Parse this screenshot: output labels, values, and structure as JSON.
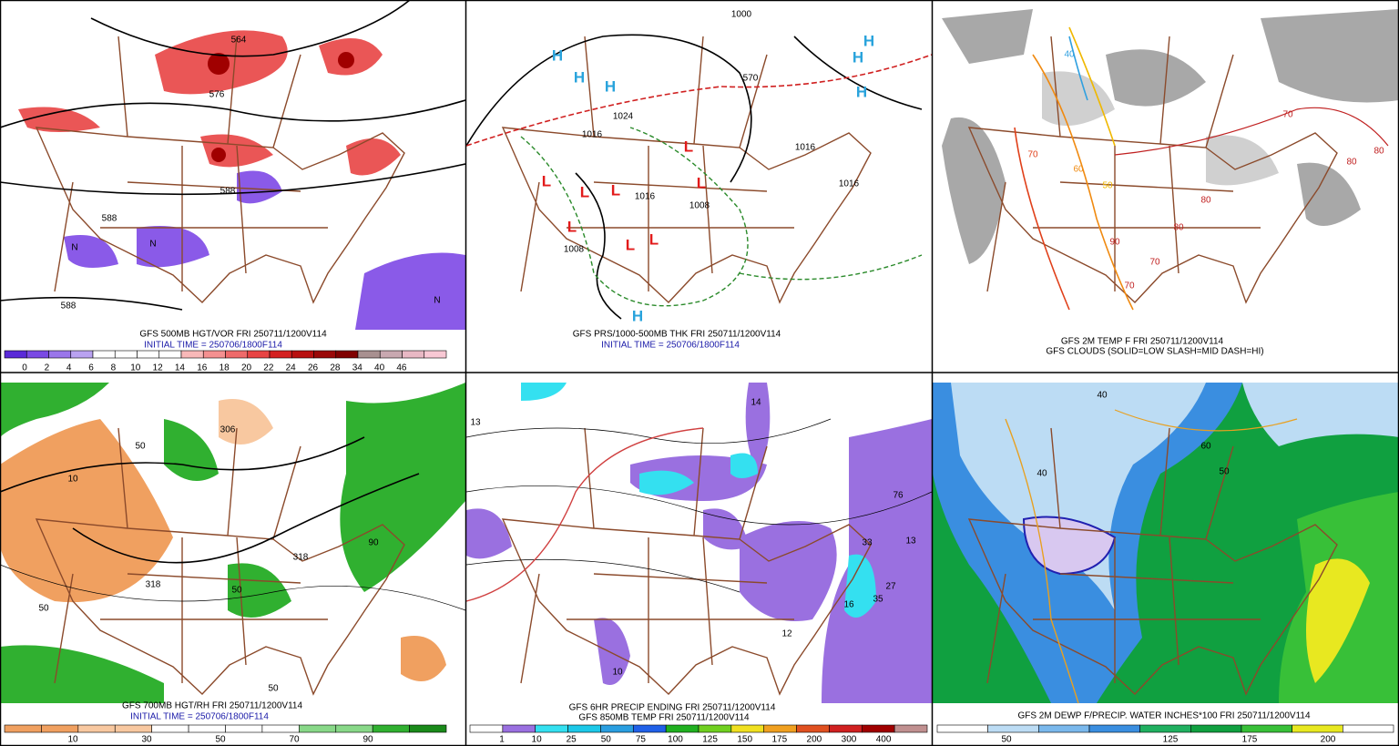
{
  "panels": [
    {
      "caption": [
        "GFS 500MB HGT/VOR FRI 250711/1200V114",
        "INITIAL TIME = 250706/1800F114"
      ],
      "map_labels": [
        "564",
        "576",
        "588",
        "588",
        "588",
        "N",
        "N",
        "N"
      ],
      "colorbar": {
        "labels": [
          0,
          2,
          4,
          6,
          8,
          10,
          12,
          14,
          16,
          18,
          20,
          22,
          24,
          26,
          28,
          34,
          40,
          46
        ],
        "colors": [
          "#5a2ad8",
          "#7a4ae4",
          "#9a76ea",
          "#b9a2f0",
          "#ffffff",
          "#ffffff",
          "#ffffff",
          "#ffffff",
          "#f8b8b8",
          "#f49090",
          "#ee6a6a",
          "#e84444",
          "#d42020",
          "#b81010",
          "#9a0808",
          "#800000",
          "#a89090",
          "#c8a8b0",
          "#e8b8c4",
          "#f8c8d4"
        ]
      }
    },
    {
      "caption": [
        "GFS PRS/1000-500MB THK FRI 250711/1200V114",
        "INITIAL TIME = 250706/1800F114"
      ],
      "map_labels": [
        "H",
        "H",
        "H",
        "H",
        "H",
        "H",
        "H",
        "L",
        "L",
        "L",
        "L",
        "L",
        "L",
        "L",
        "L",
        "1024",
        "1016",
        "1016",
        "1008",
        "1008",
        "1016",
        "1016",
        "570",
        "1000"
      ]
    },
    {
      "caption": [
        "GFS 2M TEMP F FRI 250711/1200V114",
        "GFS CLOUDS (SOLID=LOW SLASH=MID DASH=HI)"
      ],
      "map_labels": [
        "40",
        "50",
        "60",
        "70",
        "80",
        "80",
        "70",
        "80",
        "70",
        "90",
        "80",
        "70"
      ]
    },
    {
      "caption": [
        "GFS 700MB HGT/RH FRI 250711/1200V114",
        "INITIAL TIME = 250706/1800F114"
      ],
      "map_labels": [
        "306",
        "318",
        "318",
        "50",
        "50",
        "90",
        "10",
        "50",
        "50"
      ],
      "colorbar": {
        "labels": [
          10,
          30,
          50,
          70,
          90
        ],
        "colors": [
          "#f0a060",
          "#f0a060",
          "#f8c8a0",
          "#f8c8a0",
          "#ffffff",
          "#ffffff",
          "#ffffff",
          "#ffffff",
          "#88d888",
          "#88d888",
          "#30b030",
          "#1a8a1a"
        ]
      }
    },
    {
      "caption": [
        "GFS 6HR PRECIP ENDING FRI 250711/1200V114",
        "GFS 850MB TEMP FRI 250711/1200V114"
      ],
      "map_labels": [
        "13",
        "14",
        "76",
        "33",
        "13",
        "27",
        "35",
        "16",
        "12",
        "10"
      ],
      "colorbar": {
        "labels": [
          1,
          10,
          25,
          50,
          75,
          100,
          125,
          150,
          175,
          200,
          300,
          400
        ],
        "colors": [
          "#ffffff",
          "#9a70e0",
          "#34e0f0",
          "#1cc8e8",
          "#2a9ee0",
          "#2060e8",
          "#20b020",
          "#70d020",
          "#f0e020",
          "#f0a020",
          "#e05020",
          "#d02020",
          "#a00000",
          "#c09090"
        ]
      }
    },
    {
      "caption": [
        "GFS 2M DEWP F/PRECIP. WATER INCHES*100 FRI 250711/1200V114"
      ],
      "map_labels": [
        "40",
        "50",
        "60",
        "40"
      ],
      "colorbar": {
        "labels": [
          50,
          125,
          175,
          200
        ],
        "colors": [
          "#ffffff",
          "#bcdcf4",
          "#7ab8ec",
          "#3a8ee0",
          "#20b060",
          "#10a040",
          "#38c038",
          "#e8e820",
          "#ffffff"
        ]
      }
    }
  ]
}
